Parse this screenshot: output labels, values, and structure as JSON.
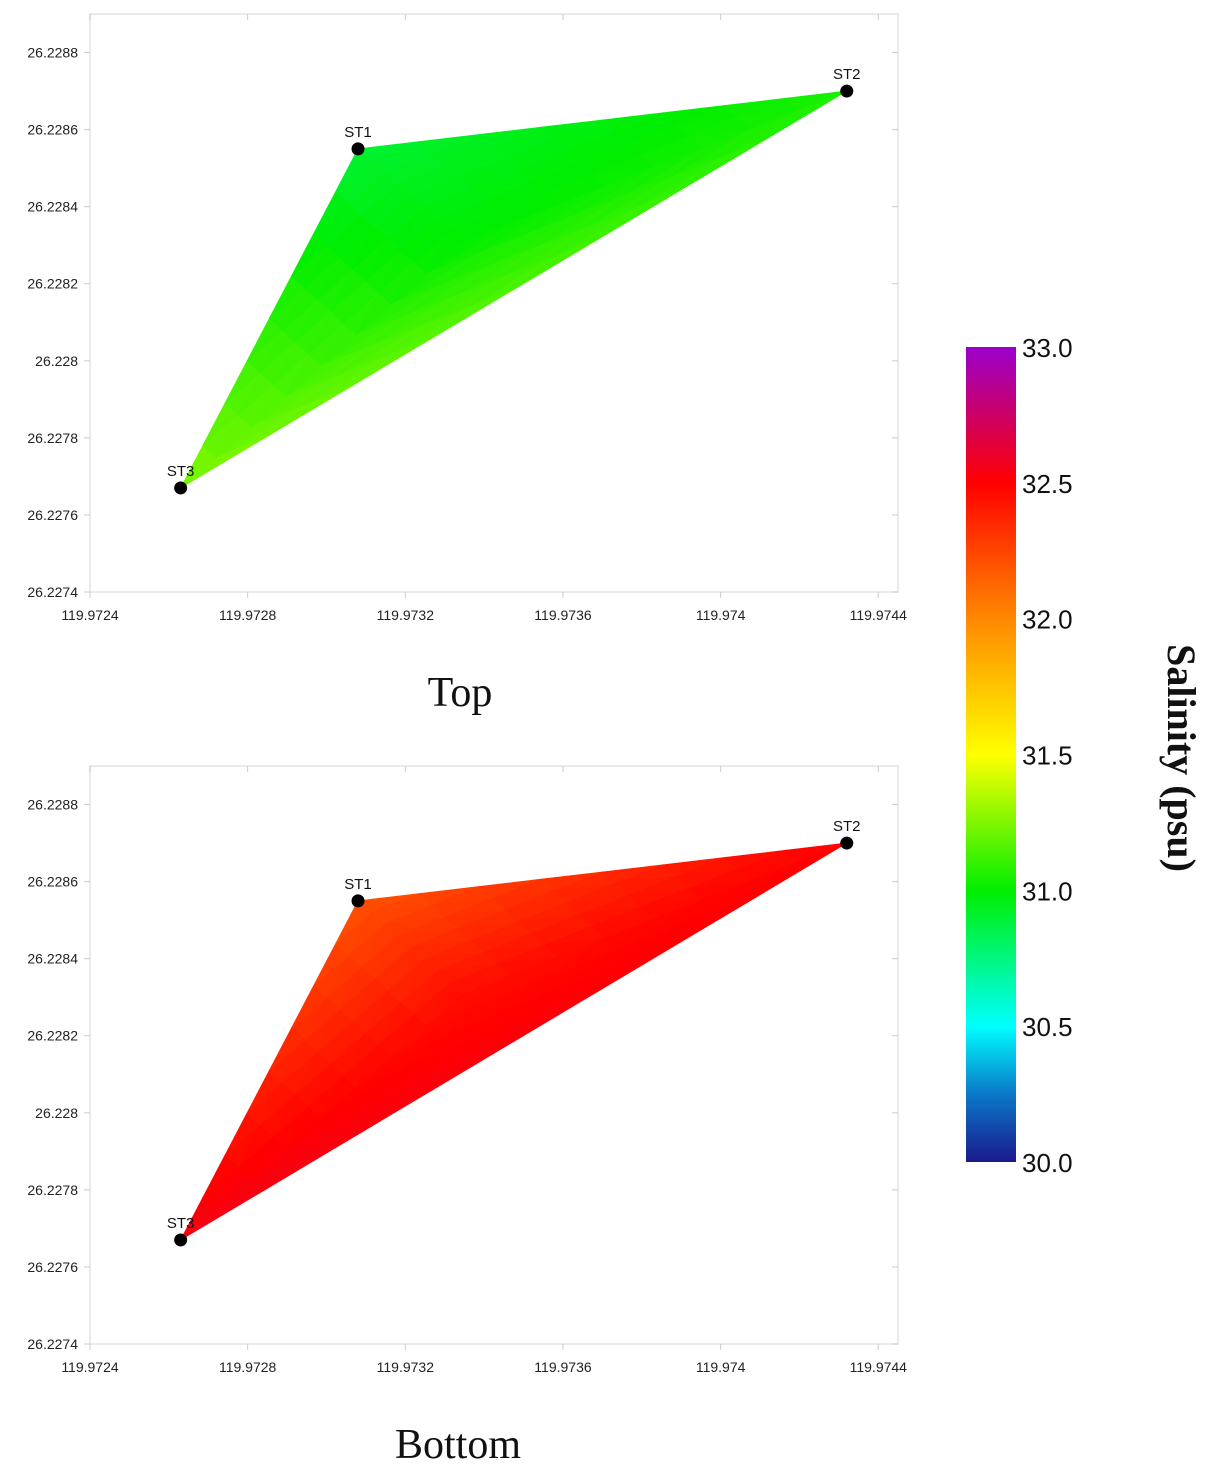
{
  "chart_data": [
    {
      "type": "heatmap",
      "caption": "Top",
      "xlim": [
        119.9724,
        119.97445
      ],
      "ylim": [
        26.2274,
        26.2289
      ],
      "x_ticks": [
        119.9724,
        119.9728,
        119.9732,
        119.9736,
        119.974,
        119.9744
      ],
      "x_tick_labels": [
        "119.9724",
        "119.9728",
        "119.9732",
        "119.9736",
        "119.974",
        "119.9744"
      ],
      "y_ticks": [
        26.2274,
        26.2276,
        26.2278,
        26.228,
        26.2282,
        26.2284,
        26.2286,
        26.2288
      ],
      "y_tick_labels": [
        "26.2274",
        "26.2276",
        "26.2278",
        "26.228",
        "26.2282",
        "26.2284",
        "26.2286",
        "26.2288"
      ],
      "grid": false,
      "stations": [
        {
          "name": "ST1",
          "x": 119.97308,
          "y": 26.22855,
          "salinity": 30.9
        },
        {
          "name": "ST2",
          "x": 119.97432,
          "y": 26.2287,
          "salinity": 31.05
        },
        {
          "name": "ST3",
          "x": 119.97263,
          "y": 26.22767,
          "salinity": 31.25
        }
      ],
      "interior_salinity": 31.0
    },
    {
      "type": "heatmap",
      "caption": "Bottom",
      "xlim": [
        119.9724,
        119.97445
      ],
      "ylim": [
        26.2274,
        26.2289
      ],
      "x_ticks": [
        119.9724,
        119.9728,
        119.9732,
        119.9736,
        119.974,
        119.9744
      ],
      "x_tick_labels": [
        "119.9724",
        "119.9728",
        "119.9732",
        "119.9736",
        "119.974",
        "119.9744"
      ],
      "y_ticks": [
        26.2274,
        26.2276,
        26.2278,
        26.228,
        26.2282,
        26.2284,
        26.2286,
        26.2288
      ],
      "y_tick_labels": [
        "26.2274",
        "26.2276",
        "26.2278",
        "26.228",
        "26.2282",
        "26.2284",
        "26.2286",
        "26.2288"
      ],
      "grid": false,
      "stations": [
        {
          "name": "ST1",
          "x": 119.97308,
          "y": 26.22855,
          "salinity": 32.2
        },
        {
          "name": "ST2",
          "x": 119.97432,
          "y": 26.2287,
          "salinity": 32.5
        },
        {
          "name": "ST3",
          "x": 119.97263,
          "y": 26.22767,
          "salinity": 32.55
        }
      ],
      "interior_salinity": 32.45
    }
  ],
  "colorbar": {
    "title": "Salinity (psu)",
    "min": 30.0,
    "max": 33.0,
    "tick_values": [
      30.0,
      30.5,
      31.0,
      31.5,
      32.0,
      32.5,
      33.0
    ],
    "tick_labels": [
      "30.0",
      "30.5",
      "31.0",
      "31.5",
      "32.0",
      "32.5",
      "33.0"
    ],
    "stops": [
      {
        "value": 30.0,
        "color": "#1a1a8c"
      },
      {
        "value": 30.25,
        "color": "#0a78c8"
      },
      {
        "value": 30.5,
        "color": "#00ffff"
      },
      {
        "value": 31.0,
        "color": "#00ee00"
      },
      {
        "value": 31.5,
        "color": "#ffff00"
      },
      {
        "value": 32.0,
        "color": "#ff8800"
      },
      {
        "value": 32.5,
        "color": "#ff0000"
      },
      {
        "value": 32.75,
        "color": "#cc0066"
      },
      {
        "value": 33.0,
        "color": "#9900cc"
      }
    ]
  },
  "colors": {
    "axis_frame": "#e3e3e3",
    "tick_mark": "#cccccc",
    "marker": "#000000"
  }
}
